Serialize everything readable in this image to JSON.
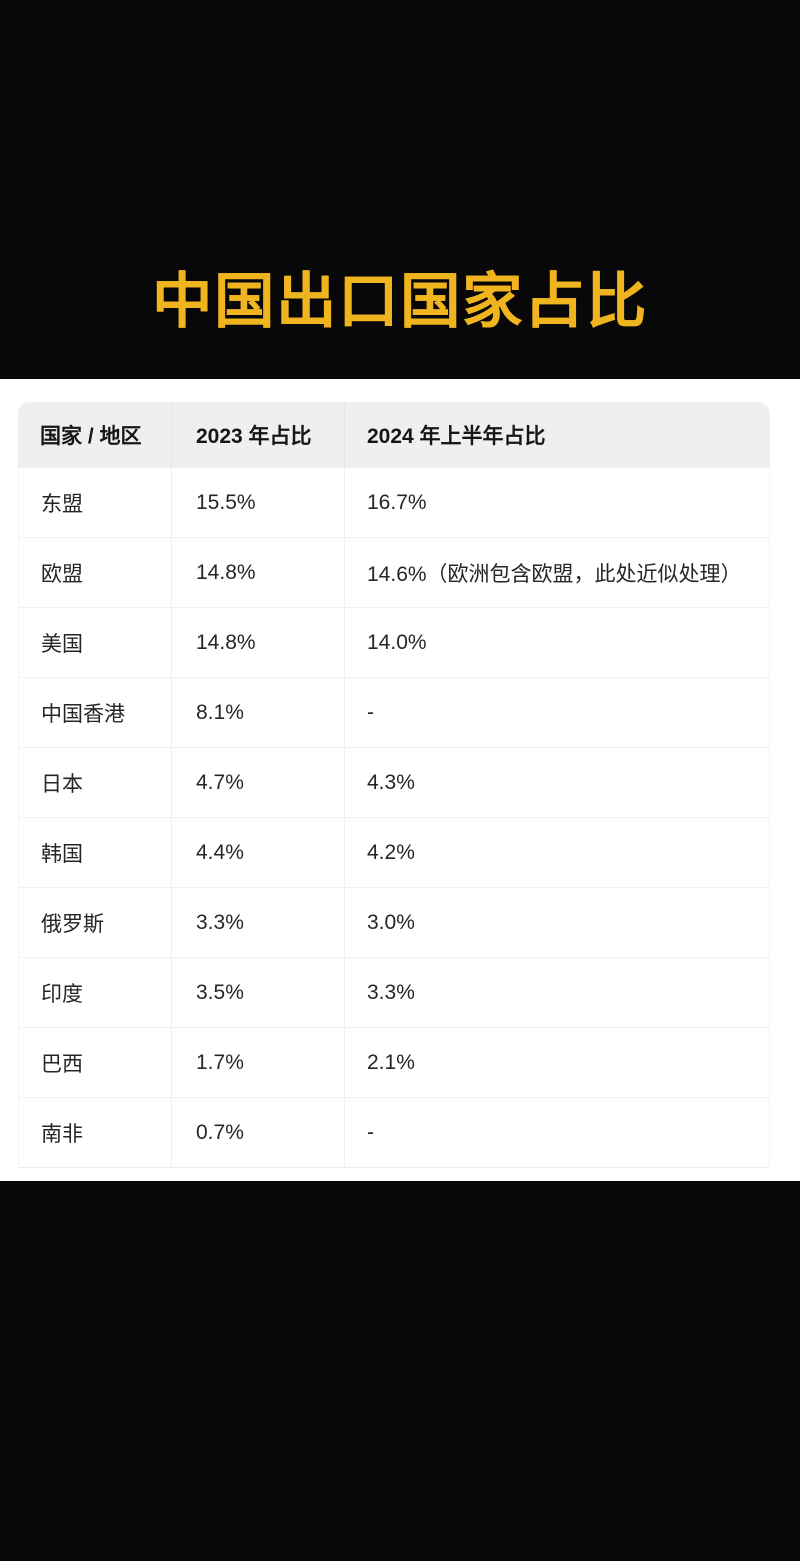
{
  "page": {
    "title": "中国出口国家占比"
  },
  "colors": {
    "title_gold": "#F0B41F",
    "background_black": "#080808",
    "panel_white": "#FFFFFF",
    "header_gray": "#EFEFEF",
    "text_dark": "#262626"
  },
  "table": {
    "headers": [
      "国家 / 地区",
      "2023 年占比",
      "2024 年上半年占比"
    ],
    "rows": [
      [
        "东盟",
        "15.5%",
        "16.7%"
      ],
      [
        "欧盟",
        "14.8%",
        "14.6%（欧洲包含欧盟，此处近似处理）"
      ],
      [
        "美国",
        "14.8%",
        "14.0%"
      ],
      [
        "中国香港",
        "8.1%",
        "-"
      ],
      [
        "日本",
        "4.7%",
        "4.3%"
      ],
      [
        "韩国",
        "4.4%",
        "4.2%"
      ],
      [
        "俄罗斯",
        "3.3%",
        "3.0%"
      ],
      [
        "印度",
        "3.5%",
        "3.3%"
      ],
      [
        "巴西",
        "1.7%",
        "2.1%"
      ],
      [
        "南非",
        "0.7%",
        "-"
      ]
    ]
  },
  "chart_data": {
    "type": "table",
    "title": "中国出口国家占比",
    "columns": [
      "国家 / 地区",
      "2023 年占比",
      "2024 年上半年占比"
    ],
    "categories": [
      "东盟",
      "欧盟",
      "美国",
      "中国香港",
      "日本",
      "韩国",
      "俄罗斯",
      "印度",
      "巴西",
      "南非"
    ],
    "series": [
      {
        "name": "2023 年占比",
        "values": [
          15.5,
          14.8,
          14.8,
          8.1,
          4.7,
          4.4,
          3.3,
          3.5,
          1.7,
          0.7
        ]
      },
      {
        "name": "2024 年上半年占比",
        "values": [
          16.7,
          14.6,
          14.0,
          null,
          4.3,
          4.2,
          3.0,
          3.3,
          2.1,
          null
        ]
      }
    ],
    "unit": "%",
    "annotations": [
      "欧盟 2024 年上半年值注释：（欧洲包含欧盟，此处近似处理）",
      "中国香港与南非 2024 年上半年占比显示为 -"
    ]
  }
}
